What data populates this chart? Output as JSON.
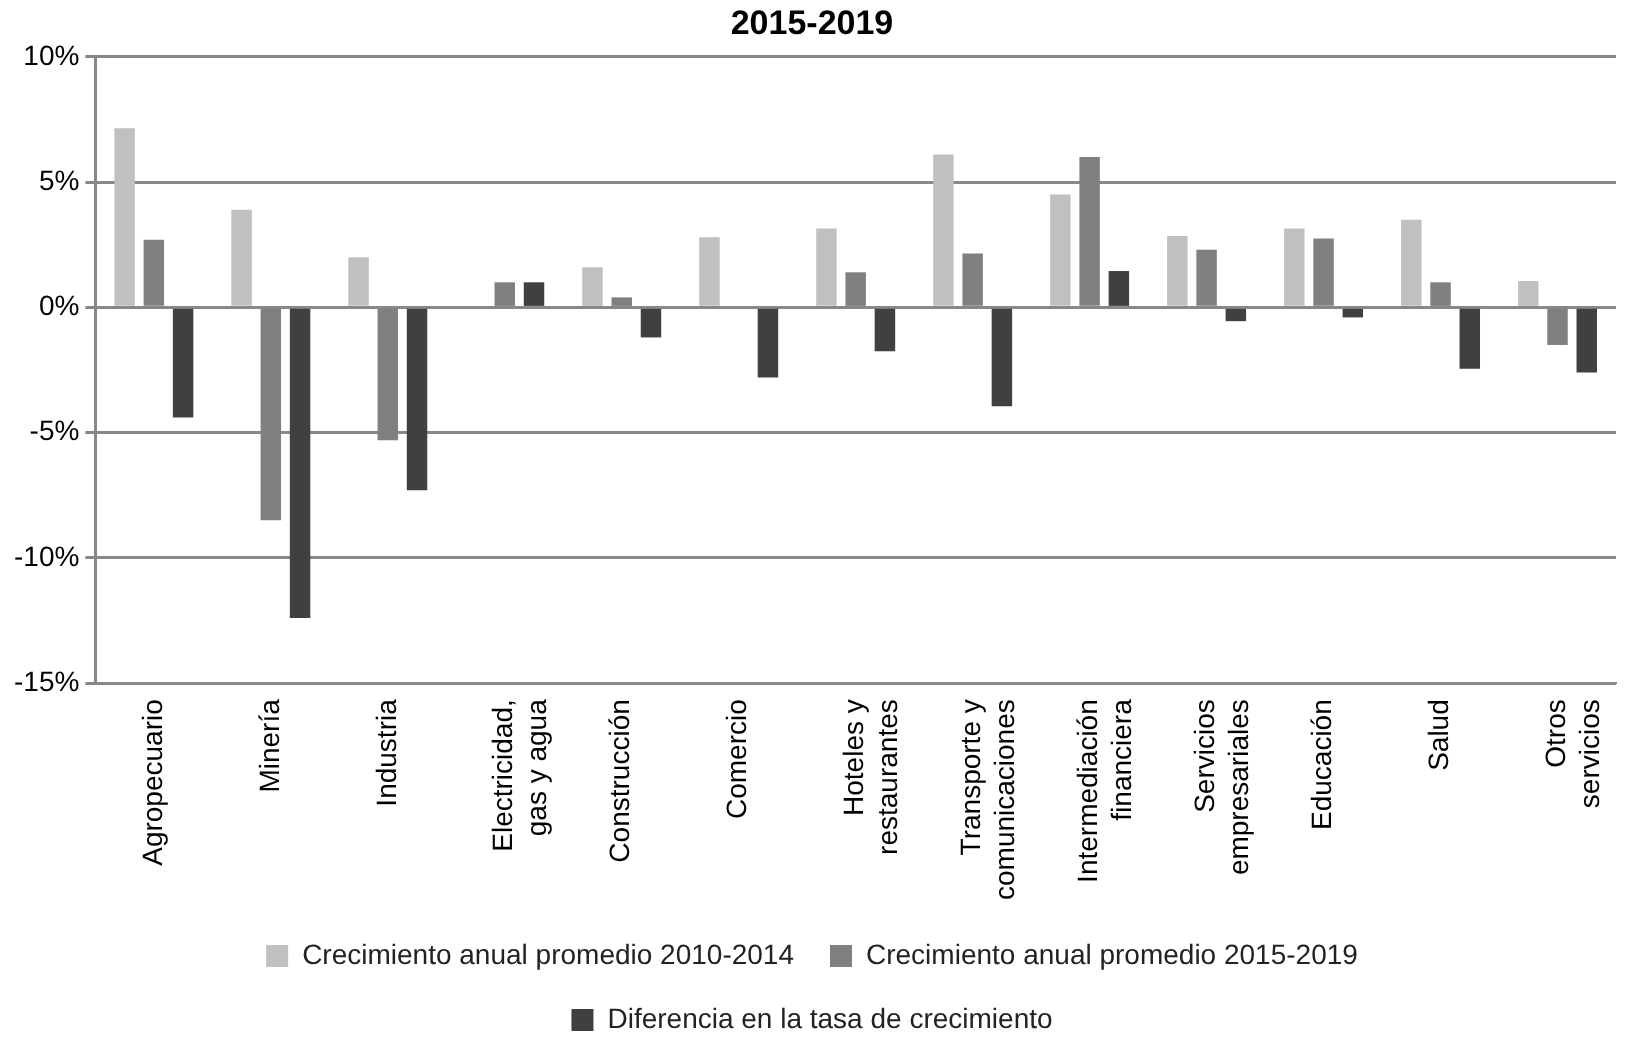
{
  "chart_data": {
    "type": "bar",
    "title": "2015-2019",
    "categories": [
      "Agropecuario",
      "Minería",
      "Industria",
      "Electricidad, gas y agua",
      "Construcción",
      "Comercio",
      "Hoteles y restaurantes",
      "Transporte y comunicaciones",
      "Intermediación financiera",
      "Servicios empresariales",
      "Educación",
      "Salud",
      "Otros servicios"
    ],
    "series": [
      {
        "name": "Crecimiento anual promedio 2010-2014",
        "color": "#c0c0c0",
        "values": [
          7.15,
          3.9,
          2.0,
          0,
          1.6,
          2.8,
          3.15,
          6.1,
          4.5,
          2.85,
          3.15,
          3.5,
          1.05
        ]
      },
      {
        "name": "Crecimiento anual promedio 2015-2019",
        "color": "#808080",
        "values": [
          2.7,
          -8.5,
          -5.3,
          1.0,
          0.4,
          0,
          1.4,
          2.15,
          6.0,
          2.3,
          2.75,
          1.0,
          -1.5
        ]
      },
      {
        "name": "Diferencia en la tasa de crecimiento",
        "color": "#404040",
        "values": [
          -4.4,
          -12.4,
          -7.3,
          1.0,
          -1.2,
          -2.8,
          -1.75,
          -3.95,
          1.45,
          -0.55,
          -0.4,
          -2.45,
          -2.6
        ]
      }
    ],
    "ylim": [
      -15,
      10
    ],
    "yticks": [
      {
        "value": -15,
        "label": "-15%"
      },
      {
        "value": -10,
        "label": "-10%"
      },
      {
        "value": -5,
        "label": "-5%"
      },
      {
        "value": 0,
        "label": "0%"
      },
      {
        "value": 5,
        "label": "5%"
      },
      {
        "value": 10,
        "label": "10%"
      }
    ],
    "grid": "y",
    "legend": "bottom"
  }
}
